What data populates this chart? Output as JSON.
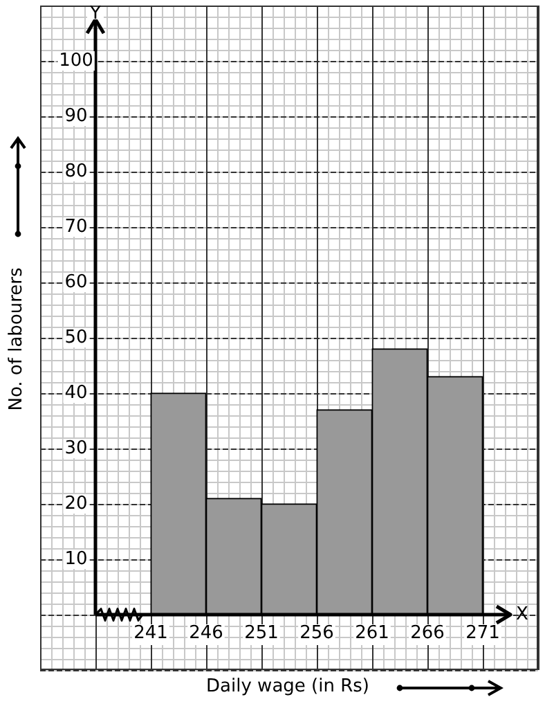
{
  "chart_data": {
    "type": "histogram",
    "xlabel": "Daily wage (in Rs)",
    "ylabel": "No. of labourers",
    "bins": [
      241,
      246,
      251,
      256,
      261,
      266,
      271
    ],
    "values": [
      40,
      21,
      20,
      37,
      48,
      43
    ],
    "color": "#999999",
    "xlim": [
      231,
      276
    ],
    "ylim": [
      -10,
      110
    ],
    "xticks": [
      241,
      246,
      251,
      256,
      261,
      266,
      271
    ],
    "yticks": [
      10,
      20,
      30,
      40,
      50,
      60,
      70,
      80,
      90,
      100
    ],
    "annotations": [
      "Y",
      "X"
    ],
    "grid": true,
    "legend": false
  }
}
